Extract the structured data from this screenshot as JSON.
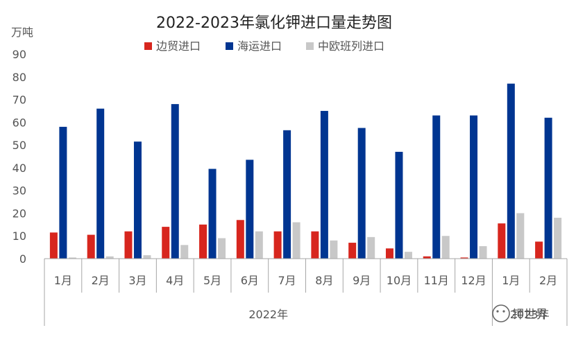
{
  "chart_data": {
    "type": "bar",
    "title": "2022-2023年氯化钾进口量走势图",
    "ylabel": "万吨",
    "ylim": [
      0,
      90
    ],
    "yticks": [
      0,
      10,
      20,
      30,
      40,
      50,
      60,
      70,
      80,
      90
    ],
    "categories": [
      "1月",
      "2月",
      "3月",
      "4月",
      "5月",
      "6月",
      "7月",
      "8月",
      "9月",
      "10月",
      "11月",
      "12月",
      "1月",
      "2月"
    ],
    "groups": [
      {
        "label": "2022年",
        "start": 0,
        "end": 11
      },
      {
        "label": "2023年",
        "start": 12,
        "end": 13
      }
    ],
    "series": [
      {
        "name": "边贸进口",
        "color": "#d7261e",
        "values": [
          11.5,
          10.5,
          12,
          14,
          15,
          17,
          12,
          12,
          7,
          4.5,
          1,
          0.5,
          15.5,
          7.5
        ]
      },
      {
        "name": "海运进口",
        "color": "#003591",
        "values": [
          58,
          66,
          51.5,
          68,
          39.5,
          43.5,
          56.5,
          65,
          57.5,
          47,
          63,
          63,
          77,
          62
        ]
      },
      {
        "name": "中欧班列进口",
        "color": "#c8c8c8",
        "values": [
          0.5,
          1,
          1.5,
          6,
          9,
          12,
          16,
          8,
          9.5,
          3,
          10,
          5.5,
          20,
          18
        ]
      }
    ],
    "legend_position": "top-center",
    "grid": false
  },
  "watermark": {
    "text": "钾世界"
  }
}
